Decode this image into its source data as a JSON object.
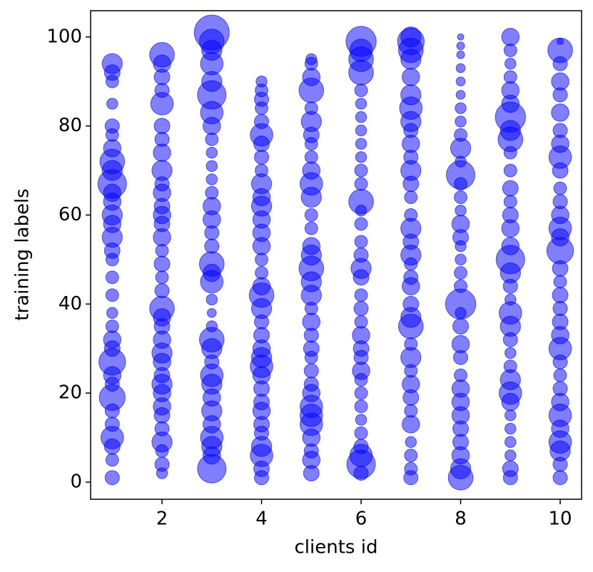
{
  "chart_data": {
    "type": "scatter",
    "x_label": "clients id",
    "y_label": "training labels",
    "color": "#0000ff",
    "xlim": [
      0.566,
      10.43
    ],
    "ylim": [
      -3.85,
      105.9
    ],
    "xticks": [
      2,
      4,
      6,
      8,
      10
    ],
    "yticks": [
      0,
      20,
      40,
      60,
      80,
      100
    ],
    "x": [
      1,
      1,
      1,
      1,
      1,
      1,
      1,
      1,
      1,
      1,
      1,
      1,
      1,
      1,
      1,
      1,
      1,
      1,
      1,
      1,
      1,
      1,
      1,
      1,
      1,
      1,
      1,
      1,
      1,
      1,
      1,
      1,
      1,
      2,
      2,
      2,
      2,
      2,
      2,
      2,
      2,
      2,
      2,
      2,
      2,
      2,
      2,
      2,
      2,
      2,
      2,
      2,
      2,
      2,
      2,
      2,
      2,
      2,
      2,
      2,
      2,
      2,
      2,
      2,
      2,
      2,
      2,
      2,
      3,
      3,
      3,
      3,
      3,
      3,
      3,
      3,
      3,
      3,
      3,
      3,
      3,
      3,
      3,
      3,
      3,
      3,
      3,
      3,
      3,
      3,
      3,
      3,
      3,
      3,
      3,
      3,
      3,
      3,
      3,
      3,
      3,
      3,
      3,
      4,
      4,
      4,
      4,
      4,
      4,
      4,
      4,
      4,
      4,
      4,
      4,
      4,
      4,
      4,
      4,
      4,
      4,
      4,
      4,
      4,
      4,
      4,
      4,
      4,
      4,
      4,
      4,
      4,
      4,
      4,
      4,
      4,
      4,
      4,
      5,
      5,
      5,
      5,
      5,
      5,
      5,
      5,
      5,
      5,
      5,
      5,
      5,
      5,
      5,
      5,
      5,
      5,
      5,
      5,
      5,
      5,
      5,
      5,
      5,
      5,
      5,
      5,
      5,
      5,
      5,
      5,
      5,
      5,
      6,
      6,
      6,
      6,
      6,
      6,
      6,
      6,
      6,
      6,
      6,
      6,
      6,
      6,
      6,
      6,
      6,
      6,
      6,
      6,
      6,
      6,
      6,
      6,
      6,
      6,
      6,
      6,
      6,
      6,
      6,
      6,
      6,
      6,
      6,
      7,
      7,
      7,
      7,
      7,
      7,
      7,
      7,
      7,
      7,
      7,
      7,
      7,
      7,
      7,
      7,
      7,
      7,
      7,
      7,
      7,
      7,
      7,
      7,
      7,
      7,
      7,
      7,
      7,
      7,
      7,
      7,
      7,
      7,
      7,
      8,
      8,
      8,
      8,
      8,
      8,
      8,
      8,
      8,
      8,
      8,
      8,
      8,
      8,
      8,
      8,
      8,
      8,
      8,
      8,
      8,
      8,
      8,
      8,
      8,
      8,
      8,
      8,
      8,
      8,
      8,
      8,
      8,
      8,
      8,
      9,
      9,
      9,
      9,
      9,
      9,
      9,
      9,
      9,
      9,
      9,
      9,
      9,
      9,
      9,
      9,
      9,
      9,
      9,
      9,
      9,
      9,
      9,
      9,
      9,
      9,
      9,
      9,
      9,
      9,
      9,
      9,
      9,
      9,
      10,
      10,
      10,
      10,
      10,
      10,
      10,
      10,
      10,
      10,
      10,
      10,
      10,
      10,
      10,
      10,
      10,
      10,
      10,
      10,
      10,
      10,
      10,
      10,
      10,
      10,
      10,
      10,
      10,
      10,
      10,
      10,
      10
    ],
    "y": [
      1,
      5,
      8,
      10,
      13,
      16,
      19,
      22,
      24,
      27,
      30,
      32,
      35,
      38,
      42,
      46,
      50,
      52,
      55,
      58,
      60,
      63,
      65,
      67,
      70,
      72,
      75,
      78,
      80,
      85,
      90,
      92,
      94,
      2,
      4,
      7,
      9,
      12,
      15,
      17,
      20,
      22,
      24,
      27,
      29,
      32,
      35,
      37,
      39,
      43,
      46,
      49,
      52,
      55,
      58,
      60,
      62,
      65,
      67,
      70,
      74,
      77,
      80,
      85,
      88,
      91,
      94,
      96,
      3,
      6,
      8,
      10,
      13,
      16,
      19,
      22,
      24,
      27,
      30,
      32,
      35,
      38,
      41,
      45,
      47,
      49,
      53,
      56,
      59,
      62,
      65,
      68,
      71,
      74,
      77,
      80,
      83,
      87,
      90,
      94,
      97,
      99,
      101,
      1,
      3,
      6,
      8,
      11,
      13,
      16,
      18,
      21,
      24,
      26,
      28,
      30,
      33,
      36,
      39,
      42,
      44,
      47,
      50,
      53,
      56,
      59,
      62,
      64,
      67,
      70,
      73,
      76,
      78,
      81,
      84,
      86,
      88,
      90,
      2,
      5,
      7,
      10,
      13,
      15,
      17,
      20,
      22,
      25,
      28,
      30,
      33,
      36,
      39,
      42,
      45,
      48,
      51,
      53,
      57,
      60,
      64,
      67,
      70,
      73,
      76,
      78,
      81,
      84,
      88,
      91,
      94,
      95,
      2,
      4,
      6,
      8,
      11,
      14,
      17,
      20,
      23,
      25,
      28,
      30,
      33,
      36,
      39,
      42,
      46,
      48,
      51,
      54,
      58,
      61,
      63,
      67,
      70,
      73,
      76,
      79,
      82,
      85,
      88,
      92,
      95,
      97,
      99,
      1,
      3,
      6,
      9,
      13,
      16,
      19,
      22,
      25,
      28,
      31,
      35,
      37,
      40,
      44,
      46,
      49,
      51,
      54,
      57,
      60,
      64,
      67,
      70,
      73,
      76,
      79,
      81,
      84,
      87,
      91,
      95,
      97,
      99,
      100,
      1,
      3,
      6,
      9,
      12,
      15,
      18,
      21,
      24,
      28,
      31,
      35,
      38,
      40,
      44,
      47,
      50,
      53,
      55,
      58,
      61,
      64,
      67,
      69,
      72,
      75,
      78,
      81,
      84,
      87,
      90,
      93,
      96,
      98,
      100,
      1,
      3,
      6,
      9,
      12,
      15,
      18,
      20,
      23,
      26,
      29,
      32,
      35,
      38,
      41,
      44,
      47,
      50,
      53,
      57,
      60,
      63,
      66,
      70,
      74,
      77,
      79,
      82,
      85,
      88,
      91,
      94,
      97,
      100,
      1,
      4,
      7,
      9,
      12,
      15,
      18,
      21,
      24,
      27,
      30,
      33,
      36,
      39,
      42,
      45,
      48,
      52,
      55,
      57,
      60,
      63,
      66,
      70,
      73,
      76,
      79,
      83,
      87,
      90,
      94,
      97,
      99
    ],
    "sizes": [
      100,
      80,
      120,
      250,
      100,
      100,
      330,
      100,
      150,
      350,
      120,
      150,
      80,
      60,
      80,
      80,
      80,
      120,
      200,
      150,
      200,
      150,
      150,
      400,
      200,
      300,
      150,
      80,
      100,
      60,
      80,
      120,
      200,
      60,
      100,
      80,
      200,
      100,
      120,
      150,
      150,
      200,
      120,
      150,
      200,
      150,
      120,
      150,
      300,
      100,
      80,
      120,
      80,
      150,
      120,
      150,
      120,
      150,
      100,
      200,
      150,
      100,
      120,
      250,
      100,
      120,
      150,
      300,
      400,
      150,
      200,
      250,
      150,
      200,
      150,
      200,
      250,
      100,
      200,
      300,
      60,
      40,
      60,
      250,
      150,
      300,
      100,
      100,
      150,
      150,
      80,
      60,
      60,
      60,
      80,
      150,
      250,
      400,
      200,
      250,
      200,
      300,
      600,
      100,
      120,
      250,
      200,
      100,
      120,
      150,
      120,
      120,
      150,
      250,
      200,
      150,
      120,
      100,
      200,
      300,
      150,
      80,
      80,
      150,
      150,
      150,
      200,
      150,
      200,
      80,
      100,
      120,
      250,
      100,
      80,
      100,
      80,
      60,
      120,
      150,
      100,
      150,
      250,
      250,
      250,
      150,
      100,
      100,
      80,
      120,
      100,
      150,
      80,
      200,
      200,
      300,
      200,
      150,
      80,
      80,
      200,
      250,
      150,
      80,
      80,
      120,
      200,
      80,
      300,
      150,
      80,
      60,
      100,
      400,
      250,
      100,
      80,
      60,
      80,
      80,
      80,
      150,
      100,
      120,
      150,
      80,
      100,
      80,
      120,
      200,
      100,
      80,
      80,
      60,
      300,
      80,
      80,
      60,
      60,
      60,
      60,
      60,
      80,
      300,
      300,
      250,
      450,
      100,
      80,
      80,
      60,
      150,
      80,
      120,
      150,
      80,
      200,
      80,
      300,
      200,
      120,
      150,
      100,
      80,
      200,
      120,
      200,
      80,
      80,
      120,
      200,
      100,
      150,
      100,
      200,
      250,
      200,
      150,
      200,
      300,
      350,
      200,
      300,
      200,
      150,
      120,
      120,
      150,
      150,
      150,
      80,
      100,
      150,
      120,
      60,
      450,
      80,
      80,
      60,
      60,
      120,
      150,
      60,
      80,
      80,
      400,
      60,
      200,
      80,
      60,
      60,
      40,
      40,
      40,
      30,
      30,
      20,
      100,
      120,
      60,
      60,
      60,
      60,
      150,
      250,
      200,
      80,
      60,
      100,
      200,
      250,
      60,
      100,
      200,
      400,
      150,
      150,
      120,
      80,
      120,
      80,
      80,
      300,
      200,
      450,
      150,
      150,
      80,
      60,
      80,
      150,
      100,
      100,
      200,
      250,
      150,
      250,
      150,
      100,
      80,
      100,
      250,
      150,
      120,
      100,
      120,
      80,
      120,
      350,
      150,
      250,
      150,
      100,
      80,
      120,
      250,
      150,
      100,
      150,
      100,
      150,
      100,
      300,
      20
    ]
  }
}
